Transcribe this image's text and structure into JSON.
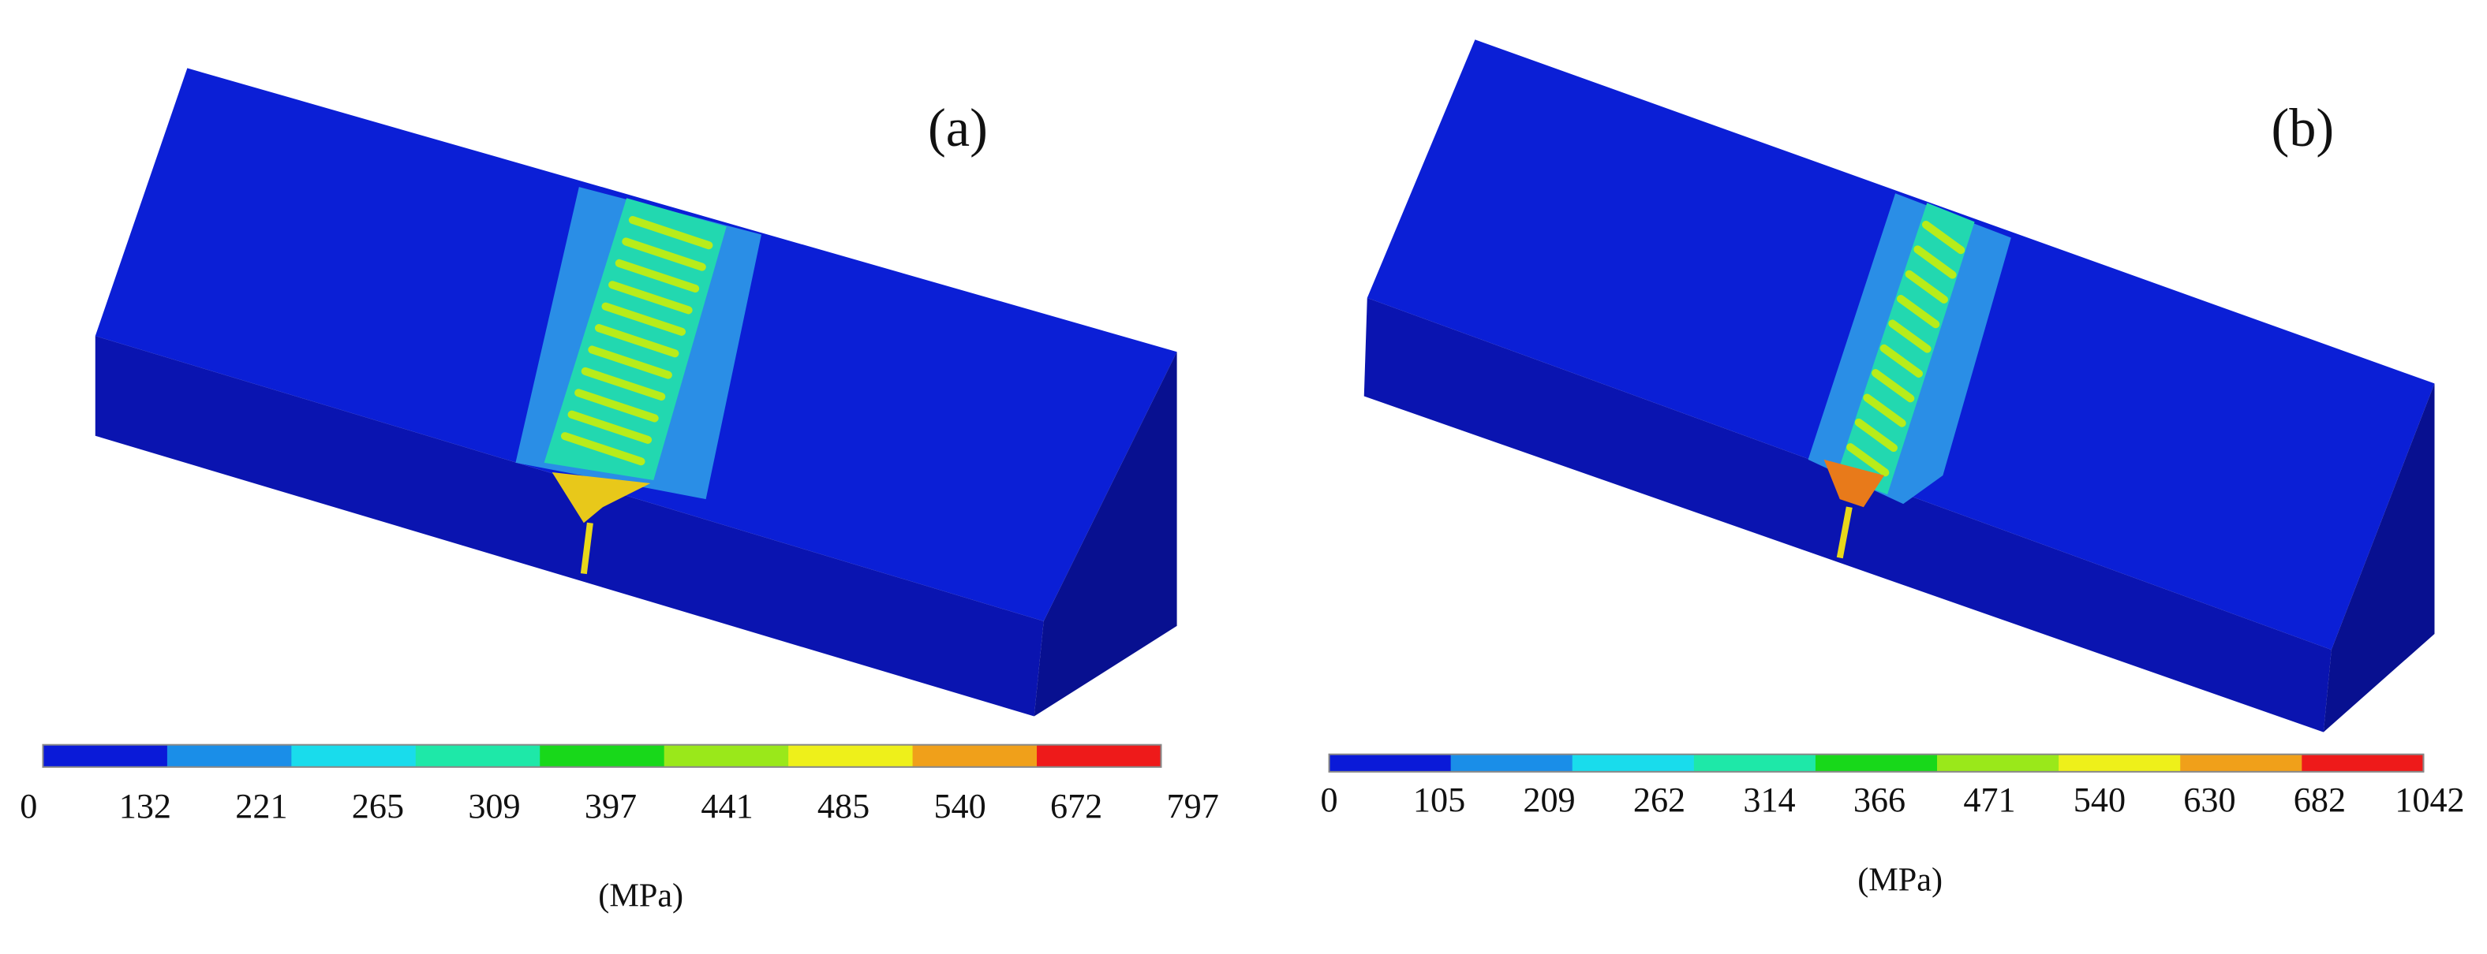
{
  "panels": [
    {
      "label": "(a)",
      "scale_labels": [
        0,
        132,
        221,
        265,
        309,
        397,
        441,
        485,
        540,
        672,
        797
      ],
      "unit": "(MPa)"
    },
    {
      "label": "(b)",
      "scale_labels": [
        0,
        105,
        209,
        262,
        314,
        366,
        471,
        540,
        630,
        682,
        1042
      ],
      "unit": "(MPa)"
    }
  ],
  "colorbar_colors": [
    "#0a1ad8",
    "#1a8ee8",
    "#19dcec",
    "#1ee8a8",
    "#18d81a",
    "#9ae81a",
    "#eef01a",
    "#f0a01a",
    "#ee1a1a"
  ]
}
